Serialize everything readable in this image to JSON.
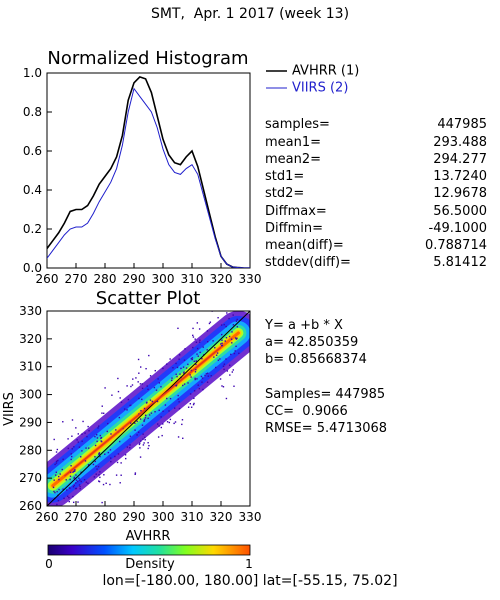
{
  "header": {
    "title": "SMT,  Apr. 1 2017 (week 13)"
  },
  "footer": {
    "region": "lon=[-180.00, 180.00] lat=[-55.15, 75.02]"
  },
  "colors": {
    "avhrr": "#000000",
    "viirs": "#1f1fcc",
    "fit_line": "#e0301e"
  },
  "chart_data": [
    {
      "type": "line",
      "title": "Normalized Histogram",
      "xlim": [
        260,
        330
      ],
      "ylim": [
        0.0,
        1.0
      ],
      "xticks": [
        "260",
        "270",
        "280",
        "290",
        "300",
        "310",
        "320",
        "330"
      ],
      "yticks": [
        "0.0",
        "0.2",
        "0.4",
        "0.6",
        "0.8",
        "1.0"
      ],
      "series": [
        {
          "name": "AVHRR (1)",
          "x": [
            260,
            262,
            264,
            266,
            268,
            270,
            272,
            274,
            276,
            278,
            280,
            282,
            284,
            286,
            288,
            290,
            292,
            294,
            296,
            298,
            300,
            302,
            304,
            306,
            308,
            310,
            312,
            314,
            316,
            318,
            320,
            322,
            324,
            326,
            328,
            330
          ],
          "y": [
            0.1,
            0.14,
            0.18,
            0.23,
            0.29,
            0.3,
            0.3,
            0.32,
            0.37,
            0.43,
            0.47,
            0.51,
            0.57,
            0.68,
            0.86,
            0.95,
            0.98,
            0.97,
            0.9,
            0.78,
            0.66,
            0.58,
            0.54,
            0.53,
            0.57,
            0.6,
            0.52,
            0.4,
            0.28,
            0.16,
            0.06,
            0.02,
            0.005,
            0.002,
            0.0,
            0.0
          ]
        },
        {
          "name": "VIIRS (2)",
          "x": [
            260,
            262,
            264,
            266,
            268,
            270,
            272,
            274,
            276,
            278,
            280,
            282,
            284,
            286,
            288,
            290,
            292,
            294,
            296,
            298,
            300,
            302,
            304,
            306,
            308,
            310,
            312,
            314,
            316,
            318,
            320,
            322,
            324,
            326,
            328,
            330
          ],
          "y": [
            0.05,
            0.09,
            0.13,
            0.17,
            0.2,
            0.21,
            0.21,
            0.23,
            0.28,
            0.34,
            0.39,
            0.44,
            0.51,
            0.63,
            0.8,
            0.92,
            0.88,
            0.84,
            0.8,
            0.72,
            0.61,
            0.53,
            0.49,
            0.48,
            0.51,
            0.53,
            0.48,
            0.37,
            0.26,
            0.15,
            0.06,
            0.02,
            0.005,
            0.002,
            0.0,
            0.0
          ]
        }
      ],
      "legend_position": "top-right"
    },
    {
      "type": "heatmap",
      "title": "Scatter Plot",
      "xlabel": "AVHRR",
      "ylabel": "VIIRS",
      "xlim": [
        260,
        330
      ],
      "ylim": [
        260,
        330
      ],
      "xticks": [
        "260",
        "270",
        "280",
        "290",
        "300",
        "310",
        "320",
        "330"
      ],
      "yticks": [
        "260",
        "270",
        "280",
        "290",
        "300",
        "310",
        "320",
        "330"
      ],
      "fit": {
        "a": 42.850359,
        "b": 0.85668374
      },
      "one_to_one_line": true,
      "colorbar": {
        "label": "Density",
        "min": "0",
        "max": "1"
      }
    }
  ],
  "stats": [
    {
      "label": "samples=",
      "value": "447985"
    },
    {
      "label": "mean1=",
      "value": "293.488"
    },
    {
      "label": "mean2=",
      "value": "294.277"
    },
    {
      "label": "std1=",
      "value": "13.7240"
    },
    {
      "label": "std2=",
      "value": "12.9678"
    },
    {
      "label": "Diffmax=",
      "value": "56.5000"
    },
    {
      "label": "Diffmin=",
      "value": "-49.1000"
    },
    {
      "label": "mean(diff)=",
      "value": "0.788714"
    },
    {
      "label": "stddev(diff)=",
      "value": "5.81412"
    }
  ],
  "fit_info": {
    "equation": "Y= a +b * X",
    "a_line": "a= 42.850359",
    "b_line": "b= 0.85668374",
    "samples_line": "Samples= 447985",
    "cc_line": "CC=  0.9066",
    "rmse_line": "RMSE= 5.4713068"
  }
}
